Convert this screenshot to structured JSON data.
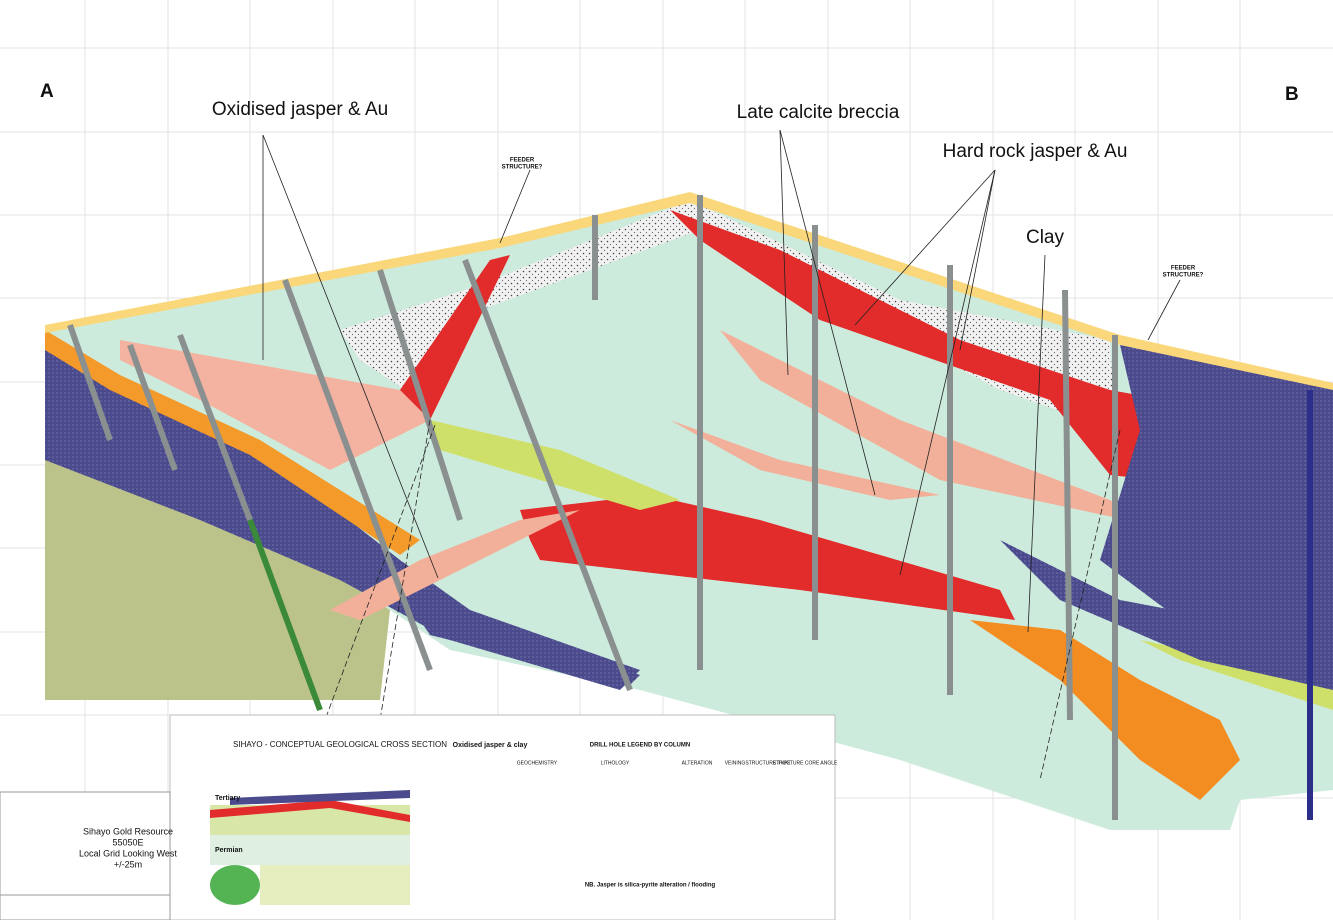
{
  "section_ends": {
    "left": "A",
    "right": "B"
  },
  "annotations": [
    {
      "text": "Oxidised jasper & Au",
      "kind": "big"
    },
    {
      "text": "Late calcite breccia",
      "kind": "big"
    },
    {
      "text": "Hard rock jasper & Au",
      "kind": "big"
    },
    {
      "text": "Clay",
      "kind": "big"
    },
    {
      "text": [
        "FEEDER",
        "STRUCTURE?"
      ],
      "kind": "small"
    },
    {
      "text": [
        "FEEDER",
        "STRUCTURE?"
      ],
      "kind": "small"
    }
  ],
  "inset": {
    "title": "SIHAYO - CONCEPTUAL GEOLOGICAL CROSS SECTION",
    "tertiary": "Tertiary",
    "permian": "Permian",
    "oxidised": "Oxidised jasper & clay"
  },
  "legend": {
    "title": "DRILL HOLE LEGEND BY COLUMN",
    "columns": [
      "GEOCHEMISTRY",
      "LITHOLOGY",
      "ALTERATION",
      "VEINING",
      "STRUCTURE TYPE",
      "STRUCTURE CORE ANGLE"
    ],
    "note": "NB. Jasper is silica-pyrite alteration / flooding"
  },
  "title_block": [
    "Sihayo Gold Resource",
    "55050E",
    "Local Grid Looking West",
    "+/-25m"
  ]
}
